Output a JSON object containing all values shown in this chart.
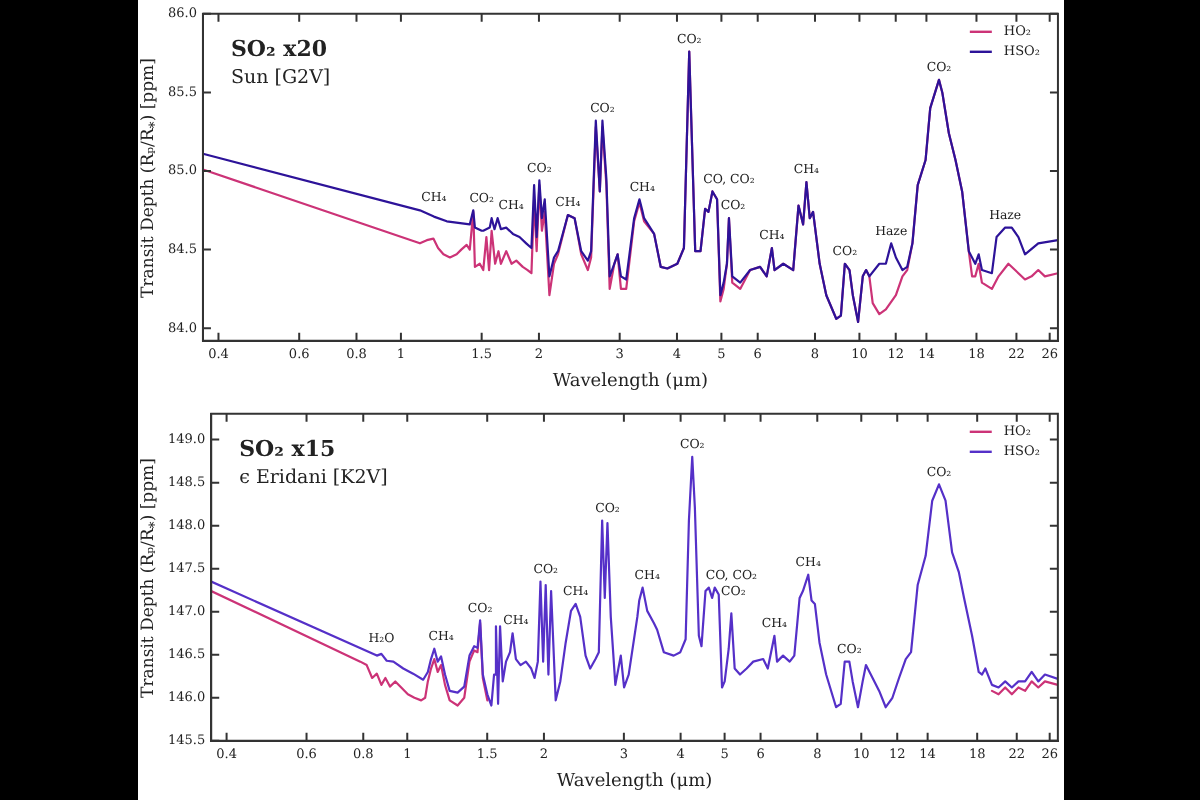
{
  "chart_data": [
    {
      "type": "line",
      "title": "SO₂ x20",
      "subtitle": "Sun [G2V]",
      "xlabel": "Wavelength (μm)",
      "ylabel": "Transit Depth (Rₚ/R$_{*}$) [ppm]",
      "log": "x",
      "xlim": [
        0.37,
        27.1
      ],
      "ylim": [
        83.92,
        86.0
      ],
      "xticks": [
        0.4,
        0.6,
        0.8,
        1,
        1.5,
        2,
        3,
        4,
        5,
        6,
        8,
        10,
        12,
        14,
        18,
        22,
        26
      ],
      "yticks": [
        {
          "value": 84,
          "label": "84.0"
        },
        84.5,
        {
          "value": 85,
          "label": "85.0"
        },
        85.5,
        {
          "value": 86,
          "label": "86.0"
        }
      ],
      "legend": "top right",
      "series": [
        {
          "name": "HO₂",
          "color": "#cc3377",
          "x": [
            0.37,
            1.1,
            1.139,
            1.177,
            1.205,
            1.238,
            1.279,
            1.323,
            1.354,
            1.391,
            1.413,
            1.438,
            1.45,
            1.486,
            1.512,
            1.536,
            1.557,
            1.577,
            1.605,
            1.632,
            1.652,
            1.697,
            1.743,
            1.785,
            1.844,
            1.889,
            1.926,
            1.952,
            1.977,
            2.004,
            2.03,
            2.059,
            2.108,
            2.157,
            2.201,
            2.313,
            2.392,
            2.473,
            2.557,
            2.599,
            2.661,
            2.715,
            2.751,
            2.806,
            2.853,
            2.92,
            2.969,
            3.019,
            3.1,
            3.226,
            3.313,
            3.391,
            3.566,
            3.687,
            3.812,
            4.007,
            4.142,
            4.254,
            4.384,
            4.502,
            4.608,
            4.685,
            4.78,
            4.892,
            4.974,
            5.057,
            5.141,
            5.193,
            5.28,
            5.495,
            5.776,
            6.072,
            6.277,
            6.443,
            6.529,
            6.823,
            7.171,
            7.364,
            7.537,
            7.663,
            7.792,
            7.923,
            8.19,
            8.467,
            8.901,
            9.111,
            9.294,
            9.514,
            9.674,
            9.934,
            10.17,
            10.34,
            10.51,
            10.69,
            11.05,
            11.42,
            12.01,
            12.41,
            12.71,
            13.05,
            13.4,
            13.94,
            14.27,
            14.91,
            15.16,
            15.67,
            16.2,
            16.75,
            17.32,
            17.61,
            17.89,
            18.2,
            18.5,
            19.45,
            20.11,
            21.13,
            21.85,
            22.97,
            23.74,
            24.55,
            25.38,
            27.1
          ],
          "values": [
            85.01,
            84.54,
            84.56,
            84.57,
            84.51,
            84.47,
            84.45,
            84.47,
            84.5,
            84.53,
            84.5,
            84.74,
            84.39,
            84.41,
            84.37,
            84.58,
            84.37,
            84.62,
            84.41,
            84.49,
            84.41,
            84.49,
            84.41,
            84.43,
            84.39,
            84.37,
            84.35,
            84.82,
            84.49,
            84.91,
            84.62,
            84.74,
            84.21,
            84.41,
            84.47,
            84.72,
            84.7,
            84.47,
            84.37,
            84.45,
            85.28,
            84.87,
            85.28,
            84.91,
            84.25,
            84.41,
            84.47,
            84.25,
            84.25,
            84.68,
            84.8,
            84.68,
            84.6,
            84.39,
            84.38,
            84.41,
            84.51,
            85.76,
            84.49,
            84.49,
            84.76,
            84.74,
            84.87,
            84.82,
            84.17,
            84.25,
            84.41,
            84.7,
            84.29,
            84.25,
            84.37,
            84.39,
            84.33,
            84.51,
            84.37,
            84.41,
            84.37,
            84.78,
            84.66,
            84.93,
            84.7,
            84.74,
            84.41,
            84.21,
            84.06,
            84.08,
            84.41,
            84.37,
            84.21,
            84.04,
            84.33,
            84.37,
            84.33,
            84.16,
            84.09,
            84.12,
            84.21,
            84.33,
            84.37,
            84.54,
            84.91,
            85.07,
            85.4,
            85.58,
            85.5,
            85.24,
            85.07,
            84.87,
            84.49,
            84.33,
            84.33,
            84.41,
            84.29,
            84.25,
            84.33,
            84.41,
            84.37,
            84.31,
            84.33,
            84.37,
            84.33,
            84.35
          ]
        },
        {
          "name": "HSO₂",
          "color": "#2d1399",
          "x": [
            0.37,
            1.1,
            1.18,
            1.259,
            1.413,
            1.438,
            1.45,
            1.5,
            1.512,
            1.562,
            1.577,
            1.6,
            1.625,
            1.652,
            1.697,
            1.74,
            1.755,
            1.814,
            1.876,
            1.926,
            1.952,
            1.977,
            2.004,
            2.03,
            2.059,
            2.108,
            2.157,
            2.201,
            2.313,
            2.392,
            2.473,
            2.557,
            2.599,
            2.661,
            2.715,
            2.751,
            2.806,
            2.853,
            2.92,
            2.969,
            3.019,
            3.1,
            3.226,
            3.313,
            3.36,
            3.391,
            3.566,
            3.687,
            3.812,
            4.007,
            4.142,
            4.254,
            4.384,
            4.502,
            4.608,
            4.685,
            4.78,
            4.892,
            4.974,
            5.057,
            5.141,
            5.193,
            5.28,
            5.495,
            5.776,
            6.072,
            6.277,
            6.443,
            6.529,
            6.823,
            7.171,
            7.364,
            7.537,
            7.663,
            7.792,
            7.923,
            8.19,
            8.467,
            8.901,
            9.111,
            9.294,
            9.514,
            9.674,
            9.84,
            9.934,
            10.17,
            10.34,
            10.51,
            11.05,
            11.42,
            11.73,
            12.01,
            12.41,
            12.71,
            13.05,
            13.4,
            13.94,
            14.27,
            14.91,
            15.16,
            15.67,
            16.2,
            16.75,
            17.32,
            17.89,
            18.2,
            18.5,
            19.45,
            19.91,
            20.79,
            21.49,
            22.22,
            22.97,
            24.55,
            27.1
          ],
          "values": [
            85.11,
            84.75,
            84.71,
            84.68,
            84.66,
            84.75,
            84.64,
            84.62,
            84.62,
            84.64,
            84.7,
            84.63,
            84.7,
            84.63,
            84.64,
            84.61,
            84.6,
            84.58,
            84.54,
            84.51,
            84.91,
            84.58,
            84.94,
            84.7,
            84.82,
            84.33,
            84.45,
            84.49,
            84.72,
            84.7,
            84.49,
            84.43,
            84.49,
            85.32,
            84.87,
            85.32,
            84.95,
            84.33,
            84.41,
            84.47,
            84.33,
            84.31,
            84.7,
            84.82,
            84.75,
            84.7,
            84.6,
            84.39,
            84.38,
            84.41,
            84.51,
            85.76,
            84.49,
            84.49,
            84.76,
            84.74,
            84.87,
            84.82,
            84.21,
            84.29,
            84.41,
            84.7,
            84.33,
            84.29,
            84.37,
            84.39,
            84.33,
            84.51,
            84.37,
            84.41,
            84.37,
            84.78,
            84.66,
            84.93,
            84.7,
            84.74,
            84.41,
            84.21,
            84.06,
            84.08,
            84.41,
            84.37,
            84.21,
            84.1,
            84.04,
            84.33,
            84.37,
            84.33,
            84.41,
            84.41,
            84.54,
            84.45,
            84.37,
            84.39,
            84.54,
            84.91,
            85.07,
            85.4,
            85.58,
            85.5,
            85.24,
            85.07,
            84.87,
            84.49,
            84.41,
            84.47,
            84.37,
            84.35,
            84.58,
            84.64,
            84.64,
            84.58,
            84.47,
            84.54,
            84.56
          ]
        }
      ],
      "annotations": [
        {
          "text": "CH₄",
          "x": 1.18,
          "y": 84.71
        },
        {
          "text": "CO₂",
          "x": 1.5,
          "y": 84.62
        },
        {
          "text": "CH₄",
          "x": 1.74,
          "y": 84.61
        },
        {
          "text": "CO₂",
          "x": 2.004,
          "y": 84.94
        },
        {
          "text": "CH₄",
          "x": 2.313,
          "y": 84.72
        },
        {
          "text": "CO₂",
          "x": 2.751,
          "y": 85.32
        },
        {
          "text": "CH₄",
          "x": 3.36,
          "y": 84.75
        },
        {
          "text": "CO₂",
          "x": 4.254,
          "y": 85.76
        },
        {
          "text": "CO, CO₂",
          "x": 5.193,
          "y": 84.7
        },
        {
          "text": "CO₂",
          "x": 5.193,
          "y": 84.7
        },
        {
          "text": "CH₄",
          "x": 6.443,
          "y": 84.51
        },
        {
          "text": "CH₄",
          "x": 7.663,
          "y": 84.93
        },
        {
          "text": "CO₂",
          "x": 9.294,
          "y": 84.41
        },
        {
          "text": "Haze",
          "x": 11.73,
          "y": 84.54
        },
        {
          "text": "CO₂",
          "x": 14.91,
          "y": 85.58
        },
        {
          "text": "Haze",
          "x": 20.79,
          "y": 84.64
        }
      ]
    },
    {
      "type": "line",
      "title": "SO₂ x15",
      "subtitle": "ϵ Eridani [K2V]",
      "xlabel": "Wavelength (μm)",
      "ylabel": "Transit Depth (Rₚ/R$_{*}$) [ppm]",
      "log": "x",
      "xlim": [
        0.37,
        27.1
      ],
      "ylim": [
        145.5,
        149.3
      ],
      "xticks": [
        0.4,
        0.6,
        0.8,
        1,
        1.5,
        2,
        3,
        4,
        5,
        6,
        8,
        10,
        12,
        14,
        18,
        22,
        26
      ],
      "yticks": [
        145.5,
        {
          "value": 146,
          "label": "146.0"
        },
        146.5,
        {
          "value": 147,
          "label": "147.0"
        },
        147.5,
        {
          "value": 148,
          "label": "148.0"
        },
        148.5,
        {
          "value": 149,
          "label": "149.0"
        }
      ],
      "legend": "top right",
      "series": [
        {
          "name": "HO₂",
          "color": "#cc3377",
          "x": [
            0.37,
            0.788,
            0.814,
            0.837,
            0.857,
            0.877,
            0.895,
            0.916,
            0.941,
            0.97,
            1.003,
            1.037,
            1.073,
            1.095,
            1.11,
            1.128,
            1.147,
            1.167,
            1.187,
            1.211,
            1.24,
            1.291,
            1.335,
            1.371,
            1.404,
            1.428,
            1.447,
            1.467,
            1.501,
            10,
            19.4,
            20.06,
            20.75,
            21.46,
            22.19,
            22.95,
            23.73,
            24.54,
            25.38,
            27.1
          ],
          "values": [
            147.24,
            146.42,
            146.38,
            146.23,
            146.28,
            146.15,
            146.23,
            146.13,
            146.19,
            146.12,
            146.04,
            146.0,
            145.97,
            146.0,
            146.19,
            146.34,
            146.45,
            146.3,
            146.38,
            146.15,
            145.97,
            145.91,
            146.0,
            146.42,
            146.55,
            146.53,
            146.87,
            146.23,
            145.97,
            null,
            146.08,
            146.04,
            146.12,
            146.04,
            146.12,
            146.08,
            146.19,
            146.12,
            146.19,
            146.15
          ]
        },
        {
          "name": "HSO₂",
          "color": "#5530c8",
          "x": [
            0.37,
            0.857,
            0.877,
            0.901,
            0.932,
            0.98,
            1.03,
            1.084,
            1.11,
            1.128,
            1.147,
            1.167,
            1.187,
            1.211,
            1.24,
            1.291,
            1.335,
            1.371,
            1.404,
            1.428,
            1.447,
            1.467,
            1.501,
            1.532,
            1.553,
            1.568,
            1.585,
            1.601,
            1.623,
            1.65,
            1.684,
            1.706,
            1.735,
            1.776,
            1.825,
            1.875,
            1.907,
            1.939,
            1.965,
            1.992,
            2.018,
            2.046,
            2.074,
            2.123,
            2.173,
            2.233,
            2.294,
            2.349,
            2.404,
            2.47,
            2.529,
            2.598,
            2.642,
            2.687,
            2.723,
            2.76,
            2.807,
            2.873,
            2.953,
            3.003,
            3.074,
            3.212,
            3.243,
            3.299,
            3.377,
            3.492,
            3.551,
            3.673,
            3.862,
            3.994,
            4.103,
            4.172,
            4.243,
            4.3,
            4.388,
            4.447,
            4.538,
            4.615,
            4.693,
            4.756,
            4.853,
            4.935,
            5.002,
            5.105,
            5.174,
            5.262,
            5.406,
            5.591,
            5.781,
            6.08,
            6.224,
            6.437,
            6.524,
            6.725,
            6.955,
            7.12,
            7.314,
            7.438,
            7.641,
            7.771,
            7.903,
            8.091,
            8.368,
            8.801,
            9.01,
            9.194,
            9.413,
            9.572,
            9.833,
            10.07,
            10.24,
            10.59,
            10.95,
            11.32,
            11.71,
            12.11,
            12.53,
            12.87,
            13.31,
            13.86,
            14.33,
            14.83,
            15.33,
            15.85,
            16.4,
            16.84,
            17.54,
            18.14,
            18.45,
            18.76,
            19.4,
            20.06,
            20.75,
            21.46,
            22.19,
            22.95,
            23.73,
            24.54,
            25.38,
            27.1
          ],
          "values": [
            147.35,
            146.49,
            146.51,
            146.43,
            146.42,
            146.34,
            146.28,
            146.21,
            146.3,
            146.45,
            146.57,
            146.42,
            146.48,
            146.27,
            146.08,
            146.06,
            146.13,
            146.49,
            146.6,
            146.58,
            146.9,
            146.27,
            146.04,
            145.91,
            146.27,
            146.83,
            145.93,
            146.83,
            146.19,
            146.42,
            146.53,
            146.75,
            146.45,
            146.38,
            146.42,
            146.34,
            146.23,
            146.42,
            147.35,
            146.42,
            147.31,
            146.27,
            147.24,
            145.97,
            146.19,
            146.64,
            147.01,
            147.09,
            146.94,
            146.49,
            146.34,
            146.45,
            146.53,
            148.06,
            147.16,
            148.03,
            146.94,
            146.15,
            146.49,
            146.12,
            146.27,
            146.94,
            147.13,
            147.28,
            147.01,
            146.87,
            146.79,
            146.53,
            146.49,
            146.53,
            146.68,
            148.06,
            148.8,
            148.21,
            146.72,
            146.6,
            147.24,
            147.28,
            147.16,
            147.28,
            147.2,
            146.12,
            146.19,
            146.57,
            146.98,
            146.34,
            146.27,
            146.34,
            146.42,
            146.45,
            146.34,
            146.72,
            146.42,
            146.49,
            146.42,
            146.49,
            147.16,
            147.24,
            147.43,
            147.13,
            147.09,
            146.64,
            146.27,
            145.89,
            145.93,
            146.42,
            146.42,
            146.19,
            145.89,
            146.19,
            146.38,
            146.23,
            146.08,
            145.89,
            146.0,
            146.23,
            146.45,
            146.53,
            147.31,
            147.65,
            148.29,
            148.48,
            148.29,
            147.69,
            147.46,
            147.16,
            146.72,
            146.3,
            146.27,
            146.34,
            146.15,
            146.12,
            146.19,
            146.12,
            146.19,
            146.19,
            146.3,
            146.19,
            146.27,
            146.22
          ]
        }
      ],
      "annotations": [
        {
          "text": "H₂O",
          "x": 0.877,
          "y": 146.51
        },
        {
          "text": "CH₄",
          "x": 1.187,
          "y": 146.48
        },
        {
          "text": "CO₂",
          "x": 1.447,
          "y": 146.9
        },
        {
          "text": "CH₄",
          "x": 1.735,
          "y": 146.45
        },
        {
          "text": "CO₂",
          "x": 2.018,
          "y": 147.31
        },
        {
          "text": "CH₄",
          "x": 2.349,
          "y": 147.09
        },
        {
          "text": "CO₂",
          "x": 2.76,
          "y": 148.03
        },
        {
          "text": "CH₄",
          "x": 3.377,
          "y": 147.01
        },
        {
          "text": "CO₂",
          "x": 4.243,
          "y": 148.8
        },
        {
          "text": "CO, CO₂",
          "x": 5.174,
          "y": 146.98
        },
        {
          "text": "CO₂",
          "x": 5.174,
          "y": 146.98
        },
        {
          "text": "CH₄",
          "x": 6.437,
          "y": 146.72
        },
        {
          "text": "CH₄",
          "x": 7.641,
          "y": 147.43
        },
        {
          "text": "CO₂",
          "x": 9.413,
          "y": 146.42
        },
        {
          "text": "CO₂",
          "x": 14.83,
          "y": 148.48
        }
      ]
    }
  ]
}
